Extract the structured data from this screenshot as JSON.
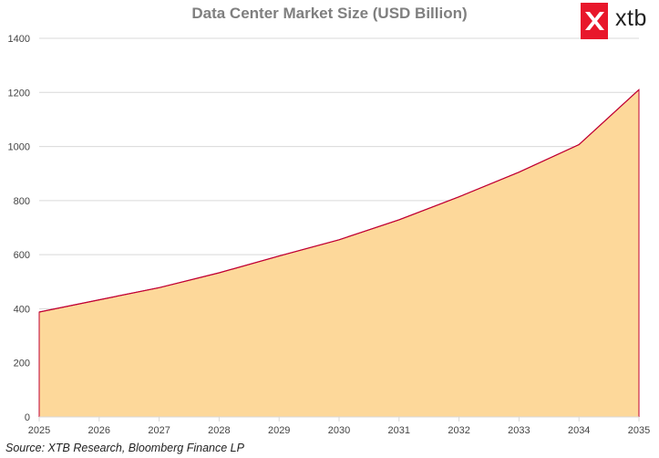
{
  "chart_data": {
    "type": "area",
    "title": "Data Center Market Size (USD Billion)",
    "x": [
      "2025",
      "2026",
      "2027",
      "2028",
      "2029",
      "2030",
      "2031",
      "2032",
      "2033",
      "2034",
      "2035"
    ],
    "values": [
      388,
      433,
      478,
      533,
      595,
      655,
      729,
      814,
      905,
      1007,
      1210
    ],
    "ylim": [
      0,
      1400
    ],
    "yticks": [
      0,
      200,
      400,
      600,
      800,
      1000,
      1200,
      1400
    ],
    "grid": true,
    "fill_color": "#fdd89a",
    "line_color": "#c00033",
    "grid_color": "#d9d9d9"
  },
  "brand": {
    "name": "xtb",
    "color": "#e8172b"
  },
  "source": "Source: XTB Research, Bloomberg Finance LP"
}
